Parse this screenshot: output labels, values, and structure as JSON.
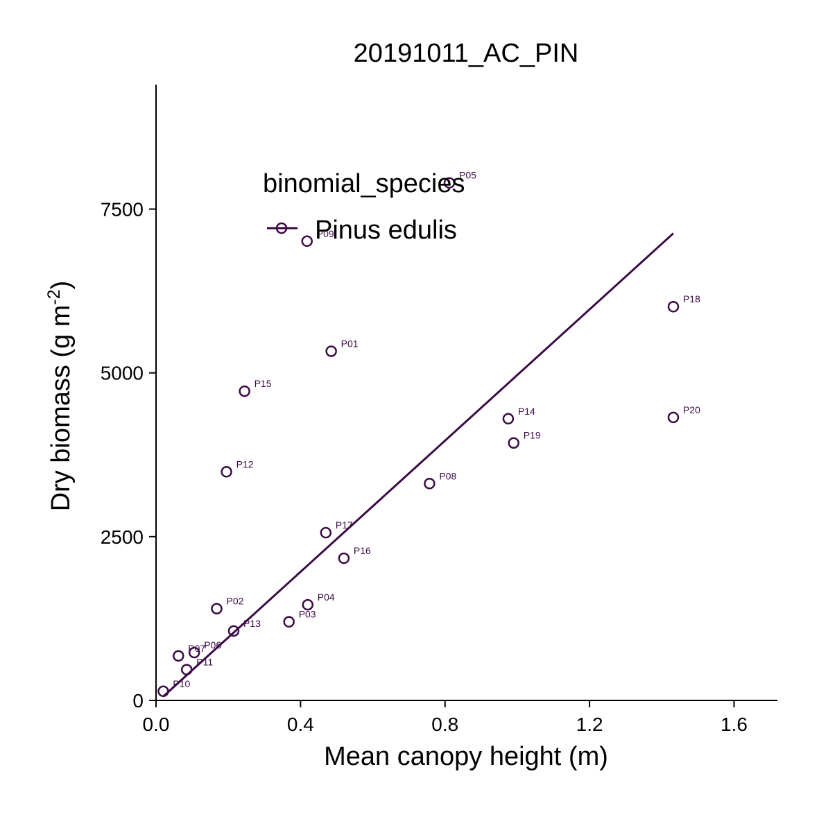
{
  "chart_data": {
    "type": "scatter",
    "title": "20191011_AC_PIN",
    "xlabel": "Mean canopy height (m)",
    "ylabel": "Dry biomass (g m",
    "ylabel_sup": "-2",
    "ylabel_close": ")",
    "xlim": [
      0.0,
      1.72
    ],
    "ylim": [
      0,
      9400
    ],
    "xticks": [
      0.0,
      0.4,
      0.8,
      1.2,
      1.6
    ],
    "xtick_labels": [
      "0.0",
      "0.4",
      "0.8",
      "1.2",
      "1.6"
    ],
    "yticks": [
      0,
      2500,
      5000,
      7500
    ],
    "ytick_labels": [
      "0",
      "2500",
      "5000",
      "7500"
    ],
    "grid": false,
    "legend": {
      "title": "binomial_species",
      "placement": "top-left",
      "entries": [
        {
          "label": "Pinus edulis",
          "color": "#3b0a45"
        }
      ]
    },
    "series": [
      {
        "name": "Pinus edulis",
        "color": "#3b0a45",
        "points": [
          {
            "label": "P01",
            "x": 0.485,
            "y": 5330
          },
          {
            "label": "P02",
            "x": 0.168,
            "y": 1400
          },
          {
            "label": "P03",
            "x": 0.368,
            "y": 1200
          },
          {
            "label": "P04",
            "x": 0.42,
            "y": 1460
          },
          {
            "label": "P05",
            "x": 0.812,
            "y": 7900
          },
          {
            "label": "P06",
            "x": 0.106,
            "y": 730
          },
          {
            "label": "P07",
            "x": 0.062,
            "y": 680
          },
          {
            "label": "P08",
            "x": 0.757,
            "y": 3310
          },
          {
            "label": "P09",
            "x": 0.418,
            "y": 7010
          },
          {
            "label": "P10",
            "x": 0.02,
            "y": 140
          },
          {
            "label": "P11",
            "x": 0.085,
            "y": 470
          },
          {
            "label": "P12",
            "x": 0.195,
            "y": 3490
          },
          {
            "label": "P13",
            "x": 0.215,
            "y": 1060
          },
          {
            "label": "P14",
            "x": 0.975,
            "y": 4300
          },
          {
            "label": "P15",
            "x": 0.245,
            "y": 4720
          },
          {
            "label": "P16",
            "x": 0.52,
            "y": 2170
          },
          {
            "label": "P17",
            "x": 0.47,
            "y": 2560
          },
          {
            "label": "P18",
            "x": 1.432,
            "y": 6010
          },
          {
            "label": "P19",
            "x": 0.99,
            "y": 3930
          },
          {
            "label": "P20",
            "x": 1.432,
            "y": 4320
          }
        ],
        "fit_line": {
          "x": [
            0.02,
            1.432
          ],
          "y": [
            60,
            7130
          ]
        }
      }
    ]
  }
}
